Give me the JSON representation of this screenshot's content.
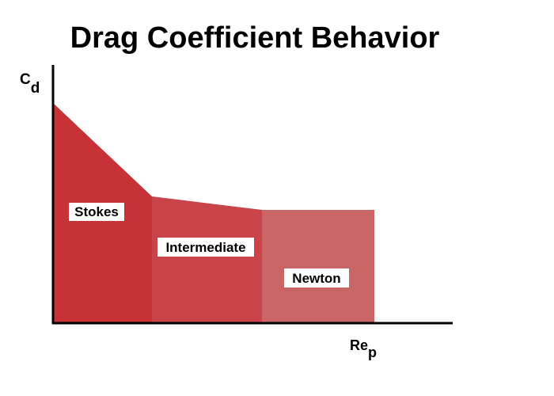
{
  "title": "Drag Coefficient Behavior",
  "axes": {
    "y_label_main": "C",
    "y_label_sub": "d",
    "x_label_main": "Re",
    "x_label_sub": "p"
  },
  "regions": [
    {
      "key": "stokes",
      "label": "Stokes",
      "color": "#c63235"
    },
    {
      "key": "intermediate",
      "label": "Intermediate",
      "color": "#c94448"
    },
    {
      "key": "newton",
      "label": "Newton",
      "color": "#c96565"
    }
  ],
  "colors": {
    "axis": "#000000",
    "background": "#ffffff"
  }
}
